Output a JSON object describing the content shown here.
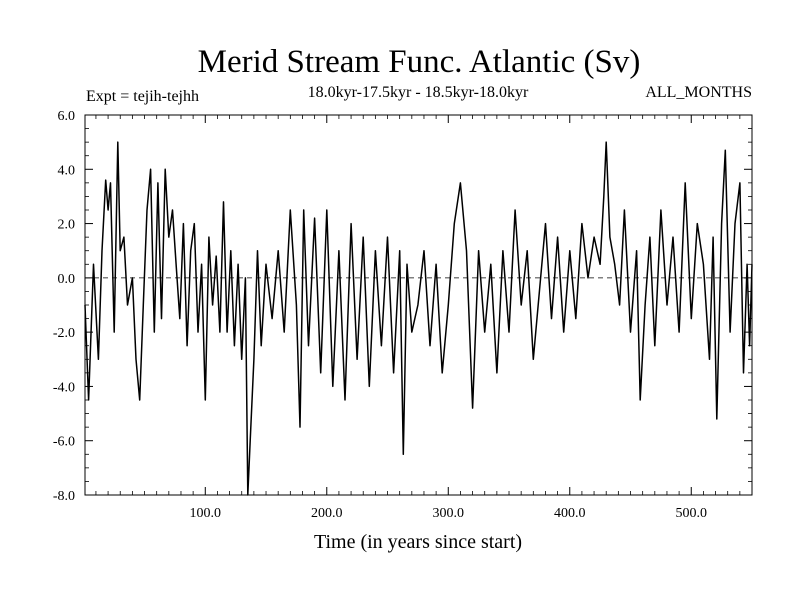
{
  "chart_data": {
    "type": "line",
    "title": "Merid Stream Func. Atlantic (Sv)",
    "subtitle": "18.0kyr-17.5kyr - 18.5kyr-18.0kyr",
    "experiment_label": "Expt = tejih-tejhh",
    "period_label": "ALL_MONTHS",
    "xlabel": "Time (in years since start)",
    "ylabel": "",
    "xlim": [
      1,
      550
    ],
    "ylim": [
      -8.0,
      6.0
    ],
    "x_ticks": [
      100,
      200,
      300,
      400,
      500
    ],
    "x_tick_labels": [
      "100.0",
      "200.0",
      "300.0",
      "400.0",
      "500.0"
    ],
    "y_ticks": [
      -8,
      -6,
      -4,
      -2,
      0,
      2,
      4,
      6
    ],
    "y_tick_labels": [
      "-8.0",
      "-6.0",
      "-4.0",
      "-2.0",
      "0.0",
      "2.0",
      "4.0",
      "6.0"
    ],
    "reference_line": 0.0,
    "series": [
      {
        "name": "Merid Stream Func. Atlantic",
        "x": [
          1,
          4,
          8,
          12,
          15,
          18,
          20,
          22,
          25,
          28,
          30,
          33,
          36,
          40,
          43,
          46,
          49,
          52,
          55,
          58,
          61,
          64,
          67,
          70,
          73,
          76,
          79,
          82,
          85,
          88,
          91,
          94,
          97,
          100,
          103,
          106,
          109,
          112,
          115,
          118,
          121,
          124,
          127,
          130,
          133,
          135,
          137,
          140,
          143,
          146,
          150,
          155,
          160,
          165,
          170,
          175,
          178,
          181,
          185,
          190,
          195,
          200,
          205,
          210,
          215,
          220,
          225,
          230,
          235,
          240,
          245,
          250,
          255,
          260,
          263,
          266,
          270,
          275,
          280,
          285,
          290,
          295,
          300,
          305,
          310,
          315,
          320,
          325,
          330,
          335,
          340,
          345,
          350,
          355,
          360,
          365,
          370,
          375,
          380,
          385,
          390,
          395,
          400,
          405,
          410,
          415,
          420,
          425,
          428,
          430,
          433,
          437,
          441,
          445,
          450,
          455,
          458,
          462,
          466,
          470,
          475,
          480,
          485,
          490,
          495,
          500,
          505,
          510,
          515,
          518,
          521,
          525,
          528,
          532,
          536,
          540,
          543,
          546,
          548,
          550
        ],
        "values": [
          -1.0,
          -4.5,
          0.5,
          -3.0,
          1.0,
          3.6,
          2.5,
          3.5,
          -2.0,
          5.0,
          1.0,
          1.5,
          -1.0,
          0.0,
          -3.0,
          -4.5,
          -1.0,
          2.5,
          4.0,
          -2.0,
          3.5,
          -1.5,
          4.0,
          1.5,
          2.5,
          0.5,
          -1.5,
          2.0,
          -2.5,
          1.0,
          2.0,
          -2.0,
          0.5,
          -4.5,
          1.5,
          -1.0,
          0.8,
          -2.0,
          2.8,
          -2.0,
          1.0,
          -2.5,
          0.5,
          -3.0,
          0.0,
          -8.0,
          -6.0,
          -3.0,
          1.0,
          -2.5,
          0.5,
          -1.5,
          1.0,
          -2.0,
          2.5,
          -1.0,
          -5.5,
          2.5,
          -2.5,
          2.2,
          -3.5,
          2.5,
          -4.0,
          1.0,
          -4.5,
          2.0,
          -3.0,
          1.5,
          -4.0,
          1.0,
          -2.5,
          1.5,
          -3.5,
          1.0,
          -6.5,
          0.5,
          -2.0,
          -1.0,
          1.0,
          -2.5,
          0.5,
          -3.5,
          -1.0,
          2.0,
          3.5,
          1.0,
          -4.8,
          1.0,
          -2.0,
          0.5,
          -3.5,
          1.0,
          -2.0,
          2.5,
          -1.0,
          1.0,
          -3.0,
          -0.5,
          2.0,
          -1.5,
          1.5,
          -2.0,
          1.0,
          -1.5,
          2.0,
          0.0,
          1.5,
          0.5,
          3.0,
          5.0,
          1.5,
          0.5,
          -1.0,
          2.5,
          -2.0,
          1.0,
          -4.5,
          -1.0,
          1.5,
          -2.5,
          2.5,
          -1.0,
          1.5,
          -2.0,
          3.5,
          -1.5,
          2.0,
          0.5,
          -3.0,
          1.5,
          -5.2,
          2.0,
          4.7,
          -2.0,
          2.0,
          3.5,
          -3.5,
          0.5,
          -2.5,
          0.5
        ]
      }
    ]
  }
}
